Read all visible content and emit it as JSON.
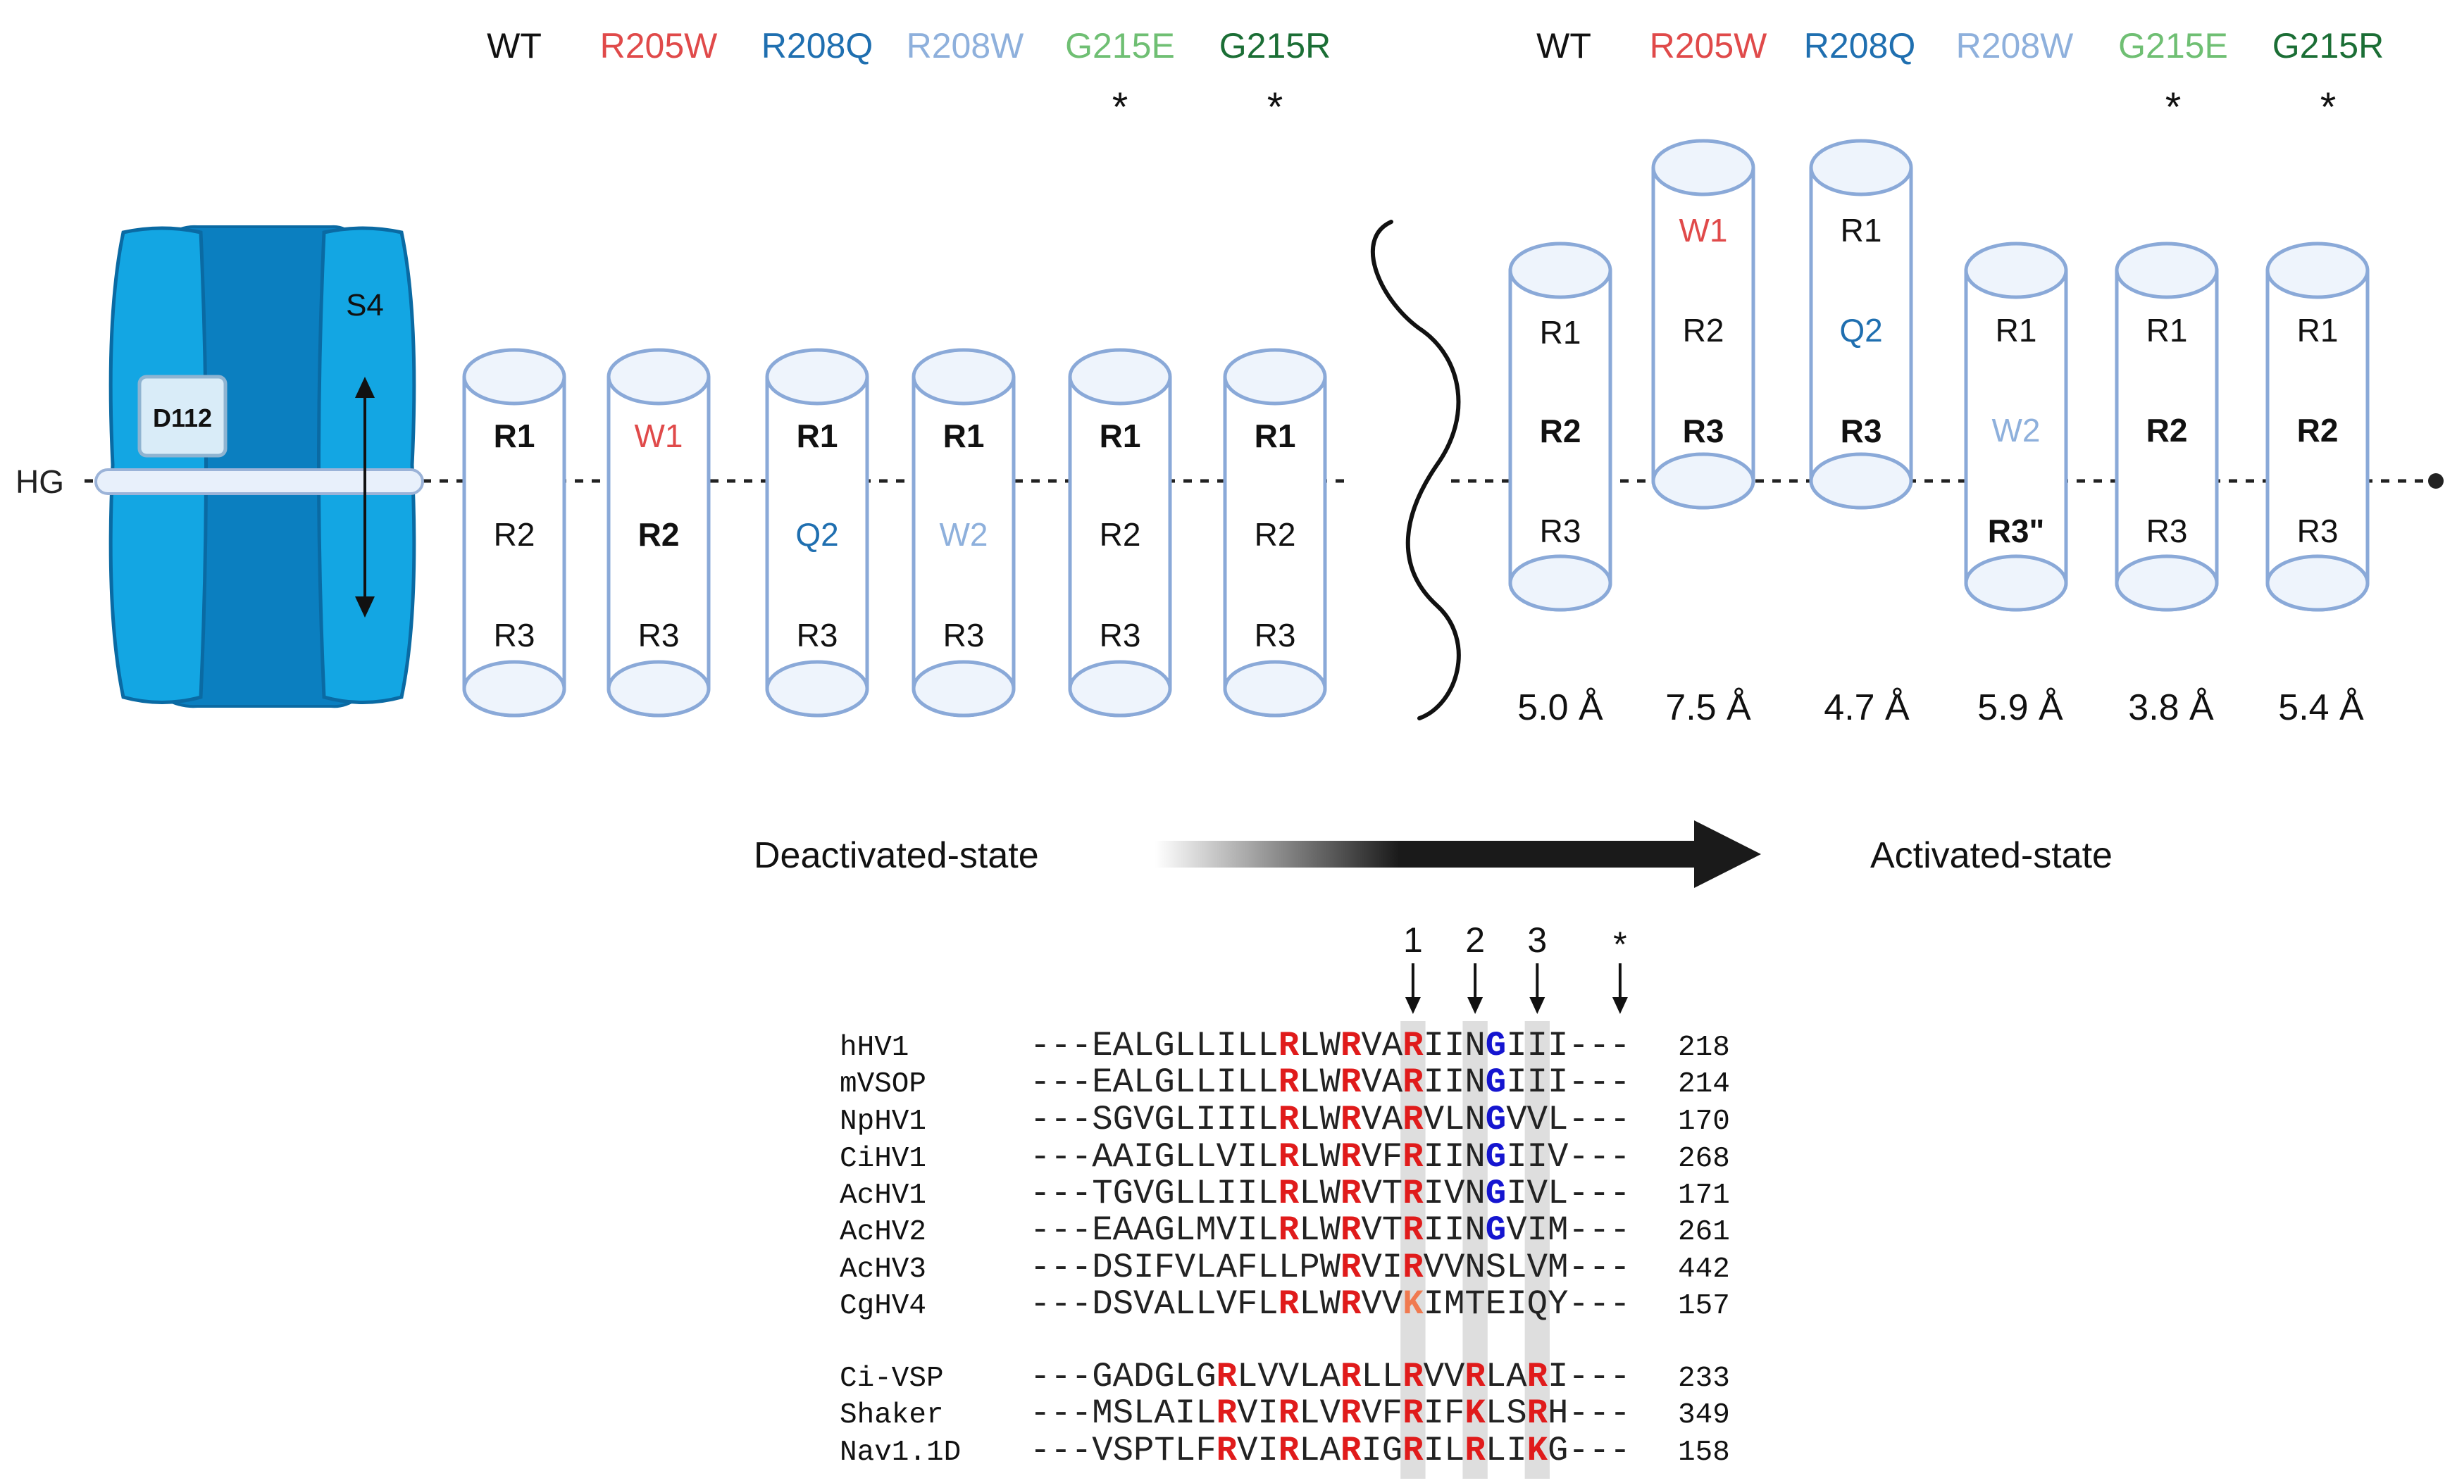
{
  "colors": {
    "wt": "#111111",
    "r205w": "#e04a4a",
    "r208q": "#1f6fb0",
    "r208w": "#8eb0dc",
    "g215e": "#6fbf73",
    "g215r": "#1b6e35",
    "cylinder_stroke": "#8aa9d8",
    "cylinder_fill": "#eef4fc",
    "channel_outer": "#13a6e3",
    "channel_inner": "#0b7fc0",
    "arg_red": "#e01b1b",
    "lys_orange": "#f07a50",
    "gly_blue": "#1515d0",
    "highlight": "#dedede"
  },
  "left_panel": {
    "headers": [
      "WT",
      "R205W",
      "R208Q",
      "R208W",
      "G215E",
      "G215R"
    ],
    "stars": [
      "",
      "",
      "",
      "",
      "*",
      "*"
    ],
    "cylinders": [
      [
        "R1",
        "R2",
        "R3"
      ],
      [
        "W1",
        "R2",
        "R3"
      ],
      [
        "R1",
        "Q2",
        "R3"
      ],
      [
        "R1",
        "W2",
        "R3"
      ],
      [
        "R1",
        "R2",
        "R3"
      ],
      [
        "R1",
        "R2",
        "R3"
      ]
    ]
  },
  "right_panel": {
    "headers": [
      "WT",
      "R205W",
      "R208Q",
      "R208W",
      "G215E",
      "G215R"
    ],
    "stars": [
      "",
      "",
      "",
      "",
      "*",
      "*"
    ],
    "cylinders": [
      [
        "R1",
        "R2",
        "R3"
      ],
      [
        "W1",
        "R2",
        "R3"
      ],
      [
        "R1",
        "Q2",
        "R3"
      ],
      [
        "R1",
        "W2",
        "R3\""
      ],
      [
        "R1",
        "R2",
        "R3"
      ],
      [
        "R1",
        "R2",
        "R3"
      ]
    ],
    "distances": [
      "5.0 Å",
      "7.5 Å",
      "4.7 Å",
      "5.9 Å",
      "3.8 Å",
      "5.4 Å"
    ]
  },
  "channel": {
    "hg_label": "HG",
    "d112_label": "D112",
    "s4_label": "S4"
  },
  "state_arrow": {
    "left_label": "Deactivated-state",
    "right_label": "Activated-state"
  },
  "alignment": {
    "markers": [
      "1",
      "2",
      "3",
      "*"
    ],
    "rows": [
      {
        "name": "hHV1",
        "pre": "---EALGLLILL",
        "c1": "R",
        "m1": "LW",
        "c2": "R",
        "m2": "VA",
        "c3": "R",
        "m3": "IIN",
        "c4": "G",
        "post": "III---",
        "num": "218"
      },
      {
        "name": "mVSOP",
        "pre": "---EALGLLILL",
        "c1": "R",
        "m1": "LW",
        "c2": "R",
        "m2": "VA",
        "c3": "R",
        "m3": "IIN",
        "c4": "G",
        "post": "III---",
        "num": "214"
      },
      {
        "name": "NpHV1",
        "pre": "---SGVGLIIIL",
        "c1": "R",
        "m1": "LW",
        "c2": "R",
        "m2": "VA",
        "c3": "R",
        "m3": "VLN",
        "c4": "G",
        "post": "VVL---",
        "num": "170"
      },
      {
        "name": "CiHV1",
        "pre": "---AAIGLLVIL",
        "c1": "R",
        "m1": "LW",
        "c2": "R",
        "m2": "VF",
        "c3": "R",
        "m3": "IIN",
        "c4": "G",
        "post": "IIV---",
        "num": "268"
      },
      {
        "name": "AcHV1",
        "pre": "---TGVGLLIIL",
        "c1": "R",
        "m1": "LW",
        "c2": "R",
        "m2": "VT",
        "c3": "R",
        "m3": "IVN",
        "c4": "G",
        "post": "IVL---",
        "num": "171"
      },
      {
        "name": "AcHV2",
        "pre": "---EAAGLMVIL",
        "c1": "R",
        "m1": "LW",
        "c2": "R",
        "m2": "VT",
        "c3": "R",
        "m3": "IIN",
        "c4": "G",
        "post": "VIM---",
        "num": "261"
      },
      {
        "name": "AcHV3",
        "pre": "---DSIFVLAFL",
        "c1": "L",
        "m1": "PW",
        "c2": "R",
        "m2": "VI",
        "c3": "R",
        "m3": "VVN",
        "c4": "S",
        "post": "LVM---",
        "num": "442"
      },
      {
        "name": "CgHV4",
        "pre": "---DSVALLVFL",
        "c1": "R",
        "m1": "LW",
        "c2": "R",
        "m2": "VV",
        "c3": "K",
        "m3": "IMT",
        "c4": "E",
        "post": "IQY---",
        "num": "157"
      },
      {
        "name": "Ci-VSP",
        "pre": "---GADGLG",
        "x1": "R",
        "pre2": "LV",
        "c1": "V",
        "m1": "LA",
        "c2": "R",
        "m2": "LL",
        "c3": "R",
        "m3": "VV",
        "x2": "R",
        "m4": "LA",
        "x3": "R",
        "post": "I---",
        "num": "233"
      },
      {
        "name": "Shaker",
        "pre": "---MSLAIL",
        "x1": "R",
        "pre2": "VI",
        "c1": "R",
        "m1": "LV",
        "c2": "R",
        "m2": "VF",
        "c3": "R",
        "m3": "IF",
        "x2": "K",
        "m4": "LS",
        "x3": "R",
        "post": "H---",
        "num": "349"
      },
      {
        "name": "Nav1.1D",
        "pre": "---VSPTLF",
        "x1": "R",
        "pre2": "VI",
        "c1": "R",
        "m1": "LA",
        "c2": "R",
        "m2": "IG",
        "c3": "R",
        "m3": "IL",
        "x2": "R",
        "m4": "LI",
        "x3": "K",
        "post": "G---",
        "num": "158"
      }
    ]
  }
}
